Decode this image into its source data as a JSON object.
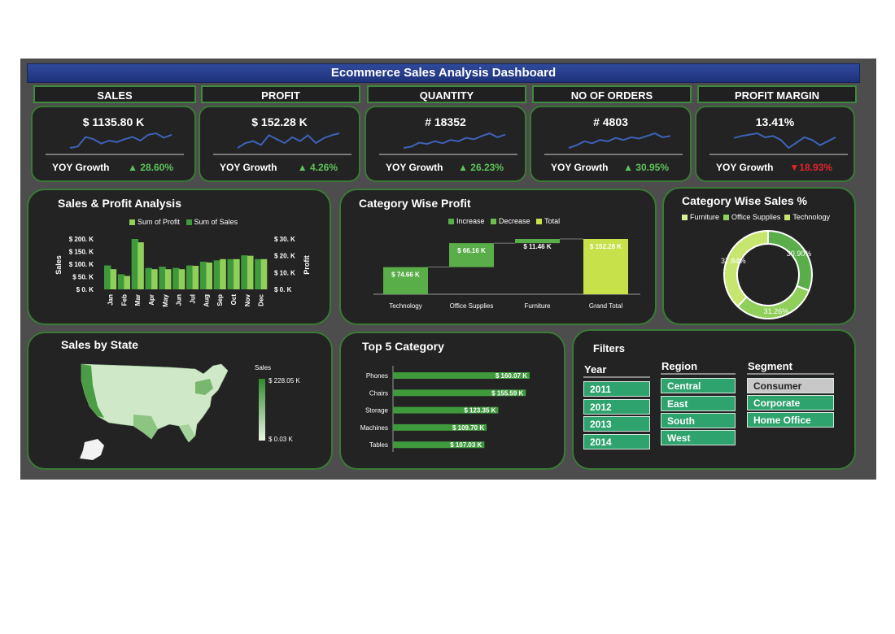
{
  "header": {
    "title": "Ecommerce Sales Analysis Dashboard"
  },
  "kpis": [
    {
      "label": "SALES",
      "value": "$ 1135.80 K",
      "yoy_label": "YOY Growth",
      "growth": "▲ 28.60%",
      "trend": "up",
      "sparkline": [
        40,
        42,
        55,
        52,
        46,
        50,
        48,
        52,
        55,
        50,
        58,
        60,
        54,
        58
      ]
    },
    {
      "label": "PROFIT",
      "value": "$ 152.28 K",
      "yoy_label": "YOY Growth",
      "growth": "▲ 4.26%",
      "trend": "up",
      "sparkline": [
        45,
        50,
        52,
        48,
        58,
        54,
        50,
        56,
        52,
        58,
        50,
        55,
        58,
        60
      ]
    },
    {
      "label": "QUANTITY",
      "value": "# 18352",
      "yoy_label": "YOY Growth",
      "growth": "▲ 26.23%",
      "trend": "up",
      "sparkline": [
        40,
        42,
        48,
        46,
        50,
        47,
        52,
        50,
        55,
        53,
        58,
        62,
        56,
        60
      ]
    },
    {
      "label": "NO OF ORDERS",
      "value": "# 4803",
      "yoy_label": "YOY Growth",
      "growth": "▲ 30.95%",
      "trend": "up",
      "sparkline": [
        40,
        44,
        50,
        47,
        52,
        50,
        55,
        52,
        56,
        54,
        58,
        62,
        56,
        58
      ]
    },
    {
      "label": "PROFIT MARGIN",
      "value": "13.41%",
      "yoy_label": "YOY Growth",
      "growth": "▼18.93%",
      "trend": "down",
      "sparkline": [
        55,
        58,
        60,
        62,
        56,
        58,
        52,
        40,
        48,
        56,
        52,
        44,
        50,
        56
      ]
    }
  ],
  "sales_profit": {
    "title": "Sales & Profit Analysis",
    "legend": [
      "Sum of Profit",
      "Sum of Sales"
    ],
    "y_left_ticks": [
      "$ 200. K",
      "$ 150. K",
      "$ 100. K",
      "$ 50. K",
      "$ 0. K"
    ],
    "y_right_ticks": [
      "$ 30. K",
      "$ 20. K",
      "$ 10. K",
      "$ 0. K"
    ],
    "y_left_label": "Sales",
    "y_right_label": "Profit"
  },
  "category_profit": {
    "title": "Category Wise Profit",
    "legend": [
      "Increase",
      "Decrease",
      "Total"
    ]
  },
  "category_sales": {
    "title": "Category Wise Sales %",
    "legend": [
      "Furniture",
      "Office Supplies",
      "Technology"
    ]
  },
  "state_map": {
    "title": "Sales by State",
    "legend_title": "Sales",
    "legend_max": "$ 228.05 K",
    "legend_min": "$ 0.03 K"
  },
  "top5": {
    "title": "Top 5 Category"
  },
  "filters": {
    "title": "Filters",
    "year_label": "Year",
    "years": [
      "2011",
      "2012",
      "2013",
      "2014"
    ],
    "region_label": "Region",
    "regions": [
      "Central",
      "East",
      "South",
      "West"
    ],
    "segment_label": "Segment",
    "segments": [
      "Consumer",
      "Corporate",
      "Home Office"
    ],
    "selected_segment": "Consumer"
  },
  "colors": {
    "background": "#4d4d4d",
    "panel": "#232323",
    "accent_green": "#5aae4a",
    "light_green": "#8fcf5a",
    "total_yellow": "#c7e14b",
    "up": "#5cc35a",
    "down": "#e0232b",
    "filter_button": "#2ea36e"
  },
  "chart_data": [
    {
      "type": "bar",
      "title": "Sales & Profit Analysis",
      "categories": [
        "Jan",
        "Feb",
        "Mar",
        "Apr",
        "May",
        "Jun",
        "Jul",
        "Aug",
        "Sep",
        "Oct",
        "Nov",
        "Dec"
      ],
      "series": [
        {
          "name": "Sum of Sales",
          "axis": "left",
          "values": [
            95,
            60,
            200,
            85,
            90,
            85,
            95,
            110,
            115,
            120,
            135,
            120
          ]
        },
        {
          "name": "Sum of Profit",
          "axis": "right",
          "values": [
            12,
            8,
            28,
            12,
            12,
            12,
            14,
            16,
            18,
            18,
            20,
            18
          ]
        }
      ],
      "ylim_left": [
        0,
        200
      ],
      "ylim_right": [
        0,
        30
      ],
      "xlabel": "",
      "ylabel": "Sales",
      "ylabel_right": "Profit"
    },
    {
      "type": "bar",
      "subtype": "waterfall",
      "title": "Category Wise Profit",
      "categories": [
        "Technology",
        "Office Supplies",
        "Furniture",
        "Grand Total"
      ],
      "values": [
        74.66,
        66.16,
        11.46,
        152.28
      ],
      "labels": [
        "$ 74.66 K",
        "$ 66.16 K",
        "$ 11.46 K",
        "$ 152.28 K"
      ],
      "kinds": [
        "increase",
        "increase",
        "increase",
        "total"
      ]
    },
    {
      "type": "pie",
      "subtype": "donut",
      "title": "Category Wise Sales %",
      "categories": [
        "Technology",
        "Office Supplies",
        "Furniture"
      ],
      "values": [
        30.9,
        31.26,
        37.84
      ],
      "labels": [
        "30.90%",
        "31.26%",
        "37.84%"
      ]
    },
    {
      "type": "bar",
      "orientation": "horizontal",
      "title": "Top 5 Category",
      "categories": [
        "Phones",
        "Chairs",
        "Storage",
        "Machines",
        "Tables"
      ],
      "values": [
        160.07,
        155.59,
        123.35,
        109.7,
        107.03
      ],
      "labels": [
        "$ 160.07 K",
        "$ 155.59 K",
        "$ 123.35 K",
        "$ 109.70 K",
        "$ 107.03 K"
      ]
    }
  ]
}
